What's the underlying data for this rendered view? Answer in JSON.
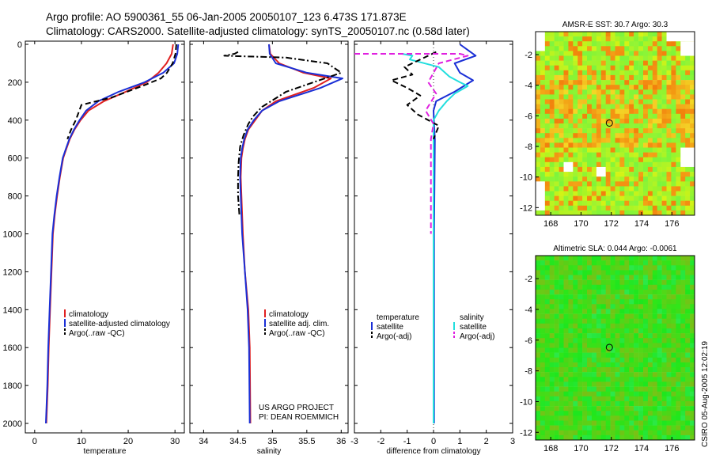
{
  "header": {
    "line1": "Argo profile: AO 5900361_55 06-Jan-2005 20050107_123 6.473S 171.873E",
    "line2": "Climatology: CARS2000. Satellite-adjusted climatology: synTS_20050107.nc (0.58d later)"
  },
  "footer": {
    "project": "US ARGO PROJECT",
    "pi": "PI: DEAN ROEMMICH",
    "stamp": "CSIRO 05-Aug-2005 12:02:19"
  },
  "colors": {
    "climatology": "#e02020",
    "satellite": "#1a2fd6",
    "argo": "#000000",
    "cyan": "#22dede",
    "magenta": "#e020e0"
  },
  "chart_data": [
    {
      "type": "line",
      "name": "temperature",
      "xlabel": "temperature",
      "ylabel": "",
      "xlim": [
        -2,
        32
      ],
      "ylim": [
        2050,
        0
      ],
      "xticks": [
        0,
        10,
        20,
        30
      ],
      "yticks": [
        0,
        200,
        400,
        600,
        800,
        1000,
        1200,
        1400,
        1600,
        1800,
        2000
      ],
      "legend": [
        "climatology",
        "satellite-adjusted climatology",
        "Argo(..raw -QC)"
      ],
      "series": [
        {
          "name": "climatology",
          "style": "solid",
          "color": "#e02020",
          "x": [
            29.6,
            29.3,
            28.2,
            26.5,
            24.0,
            19.5,
            14.8,
            11.5,
            9.8,
            8.5,
            7.5,
            6.8,
            6.1,
            5.4,
            4.8,
            4.3,
            3.9,
            3.6,
            3.3,
            3.0,
            2.8,
            2.5
          ],
          "y": [
            0,
            50,
            100,
            150,
            200,
            250,
            300,
            350,
            400,
            450,
            500,
            550,
            600,
            700,
            800,
            900,
            1000,
            1200,
            1400,
            1600,
            1800,
            2000
          ]
        },
        {
          "name": "satellite",
          "style": "solid",
          "color": "#1a2fd6",
          "x": [
            30.7,
            30.5,
            29.8,
            27.5,
            23.5,
            18.0,
            13.6,
            11.0,
            9.6,
            8.4,
            7.4,
            6.7,
            6.0,
            5.3,
            4.7,
            4.2,
            3.8,
            3.5,
            3.2,
            2.9,
            2.7,
            2.4
          ],
          "y": [
            0,
            50,
            100,
            150,
            200,
            250,
            300,
            350,
            400,
            450,
            500,
            550,
            600,
            700,
            800,
            900,
            1000,
            1200,
            1400,
            1600,
            1800,
            2000
          ]
        },
        {
          "name": "argo",
          "style": "dash",
          "color": "#000000",
          "x": [
            30.3,
            30.1,
            29.5,
            28.3,
            27.0,
            23.0,
            16.5,
            10.0,
            8.8,
            7.8,
            7.0
          ],
          "y": [
            0,
            50,
            100,
            150,
            180,
            220,
            280,
            320,
            400,
            450,
            500
          ]
        }
      ]
    },
    {
      "type": "line",
      "name": "salinity",
      "xlabel": "salinity",
      "ylabel": "",
      "xlim": [
        33.8,
        36.1
      ],
      "ylim": [
        2050,
        0
      ],
      "xticks": [
        34,
        34.5,
        35,
        35.5,
        36
      ],
      "yticks": [
        0,
        200,
        400,
        600,
        800,
        1000,
        1200,
        1400,
        1600,
        1800,
        2000
      ],
      "legend": [
        "climatology",
        "satellite adj. clim.",
        "Argo(..raw -QC)"
      ],
      "series": [
        {
          "name": "climatology",
          "style": "solid",
          "color": "#e02020",
          "x": [
            34.95,
            34.97,
            35.1,
            35.45,
            35.85,
            35.6,
            35.05,
            34.85,
            34.75,
            34.65,
            34.6,
            34.57,
            34.55,
            34.54,
            34.55,
            34.57,
            34.6,
            34.65,
            34.67,
            34.68
          ],
          "y": [
            0,
            50,
            100,
            150,
            180,
            230,
            300,
            350,
            400,
            450,
            500,
            550,
            600,
            700,
            800,
            1000,
            1200,
            1400,
            1600,
            2000
          ]
        },
        {
          "name": "satellite",
          "style": "solid",
          "color": "#1a2fd6",
          "x": [
            34.95,
            34.96,
            35.05,
            35.5,
            36.02,
            35.7,
            35.1,
            34.85,
            34.73,
            34.64,
            34.59,
            34.56,
            34.54,
            34.53,
            34.54,
            34.56,
            34.6,
            34.64,
            34.66,
            34.67
          ],
          "y": [
            0,
            50,
            100,
            150,
            180,
            230,
            300,
            350,
            400,
            450,
            500,
            550,
            600,
            700,
            800,
            1000,
            1200,
            1400,
            1600,
            2000
          ]
        },
        {
          "name": "argo",
          "style": "dashdot",
          "color": "#000000",
          "x": [
            34.5,
            34.45,
            34.3,
            35.2,
            35.8,
            36.0,
            35.2,
            34.85,
            34.72,
            34.65,
            34.58,
            34.53,
            34.51,
            34.5,
            34.5,
            34.52
          ],
          "y": [
            40,
            50,
            60,
            70,
            100,
            150,
            250,
            330,
            380,
            420,
            480,
            540,
            620,
            700,
            800,
            900
          ]
        }
      ]
    },
    {
      "type": "line",
      "name": "difference",
      "xlabel": "difference from climatology",
      "ylabel": "",
      "xlim": [
        -3,
        3
      ],
      "ylim": [
        2050,
        0
      ],
      "xticks": [
        -3,
        -2,
        -1,
        0,
        1,
        2,
        3
      ],
      "yticks": [
        0,
        200,
        400,
        600,
        800,
        1000,
        1200,
        1400,
        1600,
        1800,
        2000
      ],
      "legend_left": [
        "temperature",
        "satellite",
        "Argo(-adj)"
      ],
      "legend_right": [
        "salinity",
        "satellite",
        "Argo(-adj)"
      ],
      "series": [
        {
          "name": "temperature satellite",
          "style": "solid",
          "color": "#1a2fd6",
          "x": [
            1.0,
            1.3,
            1.6,
            0.8,
            1.0,
            1.5,
            0.8,
            0.1,
            0.0,
            0.02,
            0.05,
            0.02,
            0.02,
            0.02
          ],
          "y": [
            0,
            30,
            60,
            100,
            150,
            190,
            250,
            300,
            350,
            420,
            500,
            1000,
            1600,
            2000
          ]
        },
        {
          "name": "salinity satellite",
          "style": "solid",
          "color": "#22dede",
          "x": [
            -1.2,
            -0.8,
            -0.9,
            0.2,
            0.6,
            1.0,
            1.3,
            0.8,
            0.5,
            0.2,
            0.0,
            0.0,
            0.0,
            0.0
          ],
          "y": [
            50,
            60,
            80,
            120,
            170,
            200,
            220,
            260,
            300,
            350,
            400,
            1000,
            1600,
            2000
          ]
        },
        {
          "name": "temperature argo",
          "style": "dash",
          "color": "#000000",
          "x": [
            0.1,
            -0.5,
            -1.1,
            -0.8,
            -1.6,
            -1.0,
            -0.5,
            -1.0,
            -0.6,
            0.2,
            0.0
          ],
          "y": [
            40,
            80,
            120,
            160,
            190,
            230,
            270,
            320,
            370,
            430,
            500
          ]
        },
        {
          "name": "salinity argo",
          "style": "dash",
          "color": "#e020e0",
          "x": [
            -3.0,
            1.0,
            1.3,
            0.2,
            -0.2,
            0.1,
            -0.3,
            0.0,
            -0.1,
            -0.1
          ],
          "y": [
            50,
            50,
            60,
            100,
            200,
            260,
            350,
            420,
            500,
            1000
          ]
        }
      ]
    },
    {
      "type": "heatmap",
      "name": "sst_map",
      "title": "AMSR-E SST: 30.7  Argo: 30.3",
      "xticks": [
        168,
        170,
        172,
        174,
        176
      ],
      "yticks": [
        -2,
        -4,
        -6,
        -8,
        -10,
        -12
      ],
      "xlim": [
        167,
        177.5
      ],
      "ylim": [
        -12.5,
        -0.5
      ],
      "marker": {
        "lon": 171.873,
        "lat": -6.473
      }
    },
    {
      "type": "heatmap",
      "name": "sla_map",
      "title": "Altimetric SLA: 0.044  Argo: -0.0061",
      "xticks": [
        168,
        170,
        172,
        174,
        176
      ],
      "yticks": [
        -2,
        -4,
        -6,
        -8,
        -10,
        -12
      ],
      "xlim": [
        167,
        177.5
      ],
      "ylim": [
        -12.5,
        -0.5
      ],
      "marker": {
        "lon": 171.873,
        "lat": -6.473
      }
    }
  ]
}
